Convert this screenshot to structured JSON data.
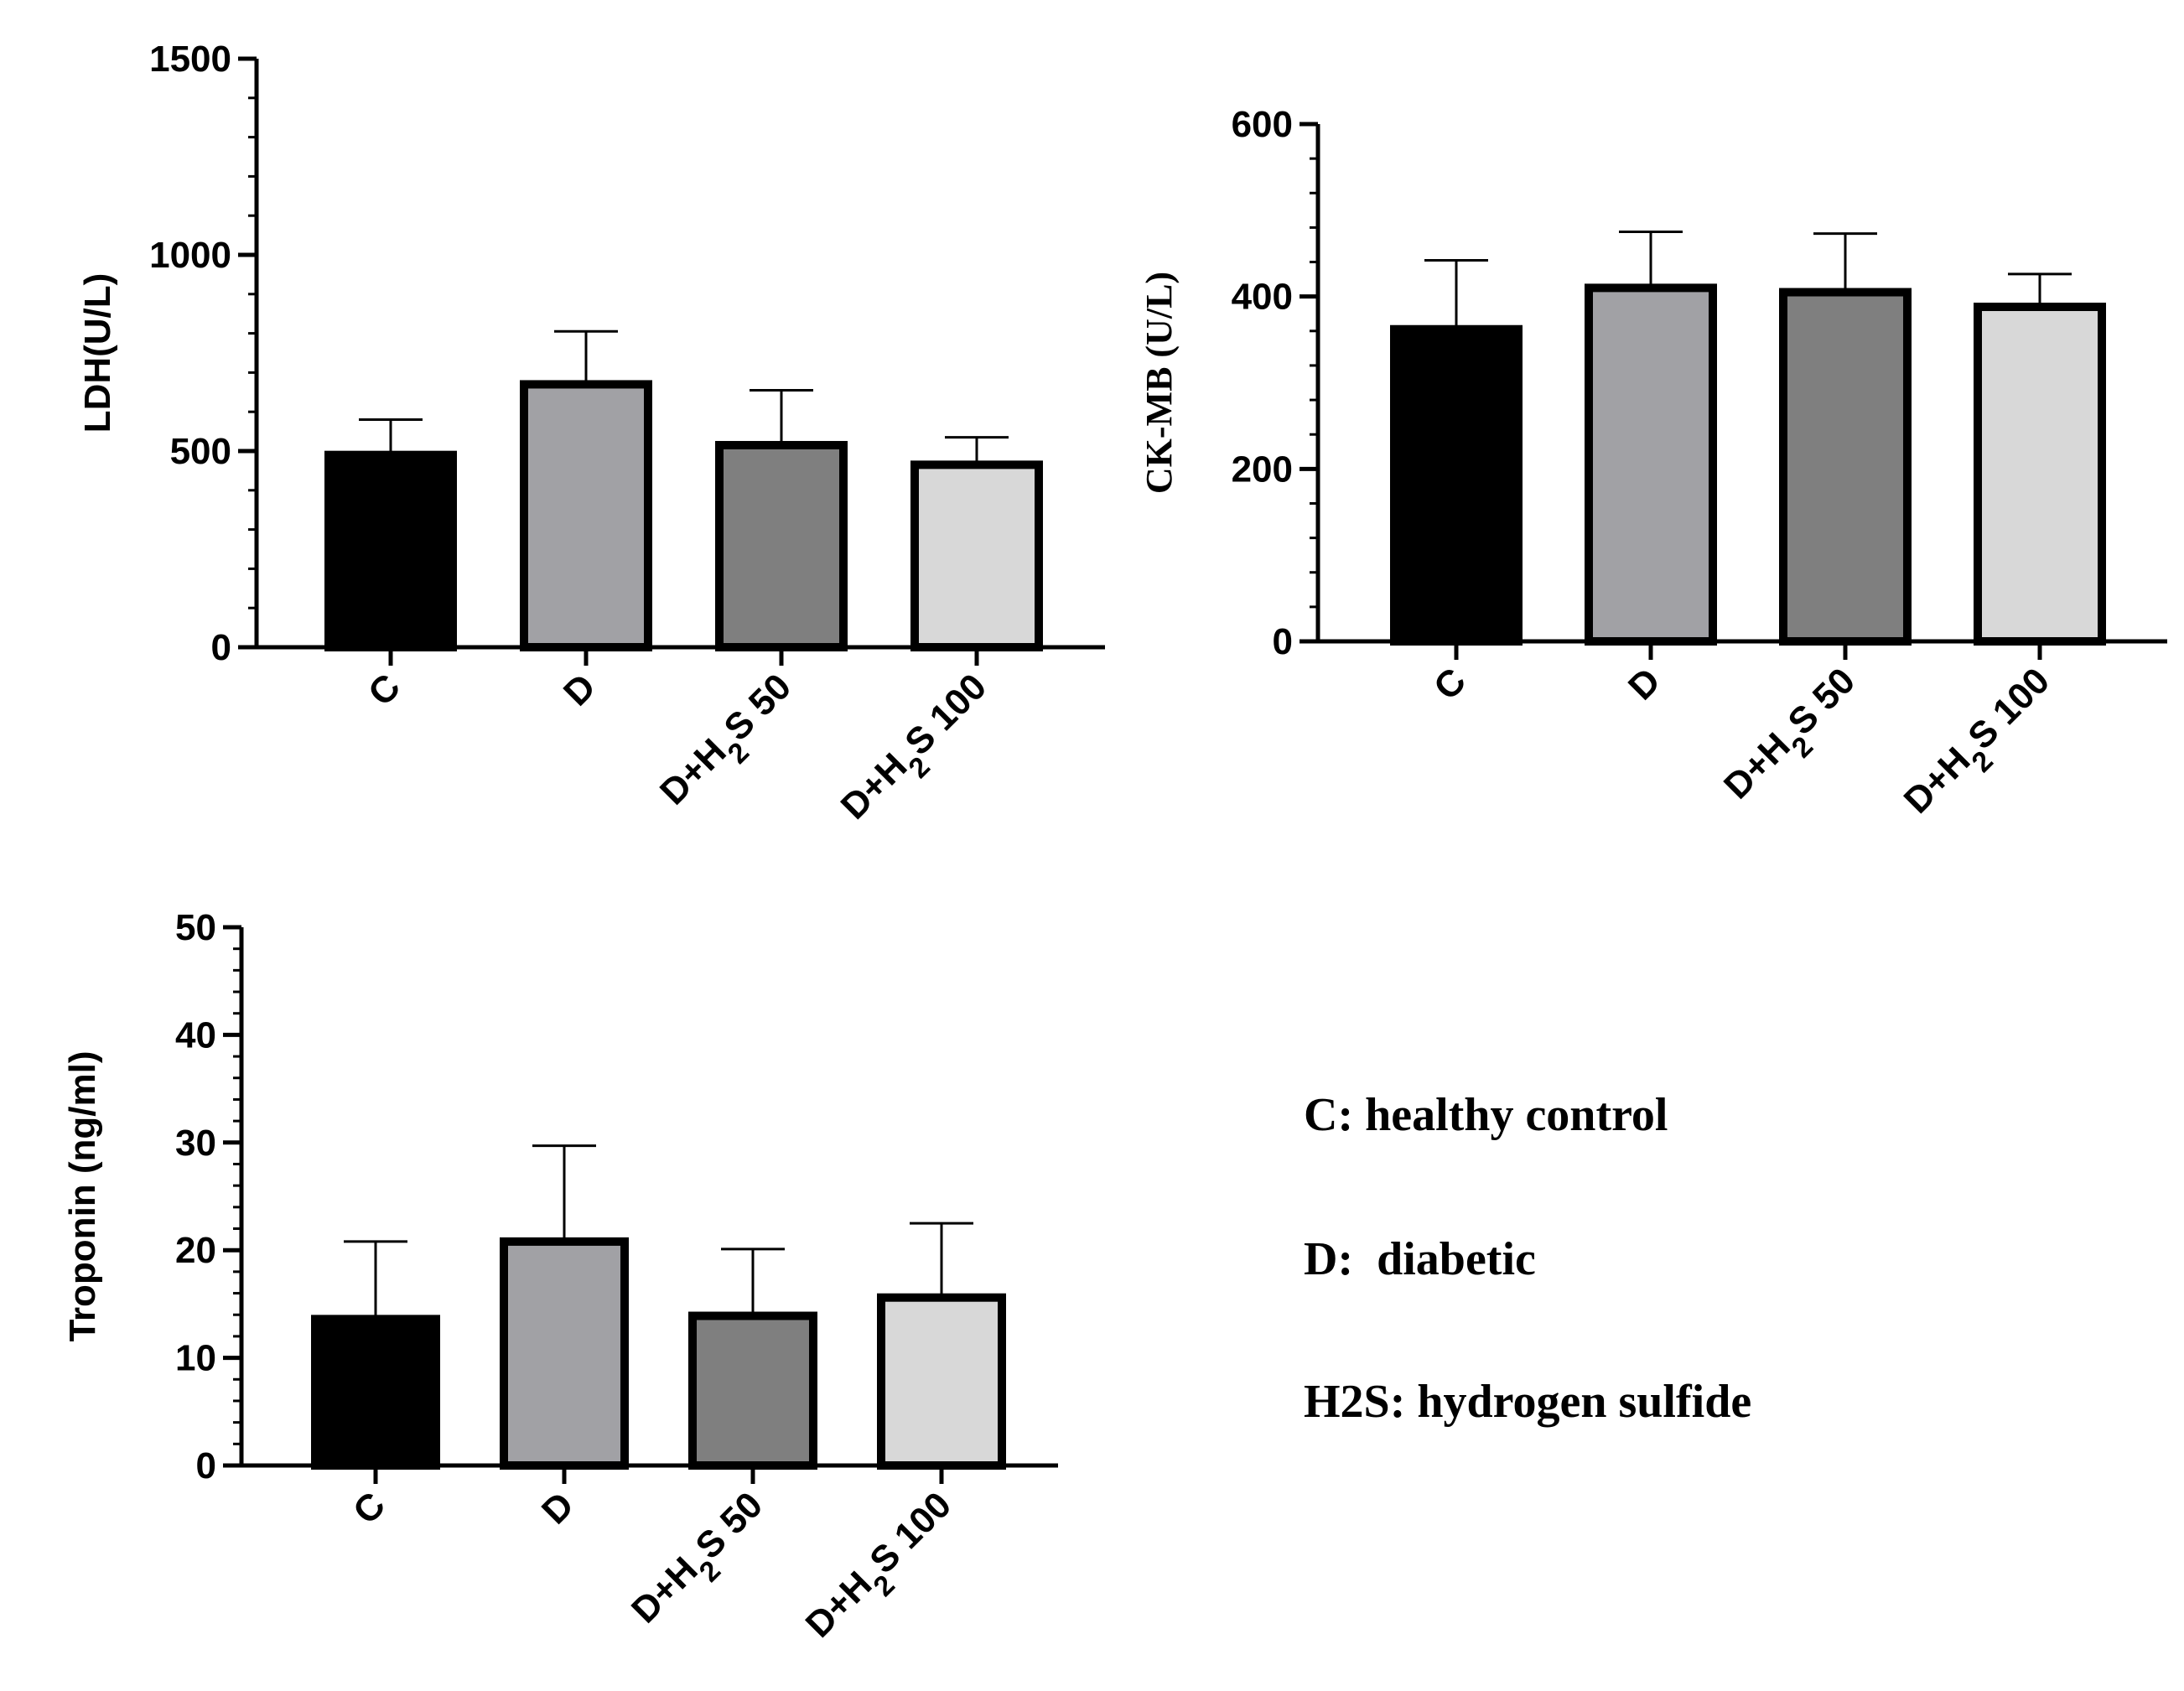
{
  "chart_data": [
    {
      "type": "bar",
      "categories": [
        "C",
        "D",
        "D+H2S 50",
        "D+H2S 100"
      ],
      "values": [
        490,
        670,
        515,
        465
      ],
      "errors": [
        90,
        135,
        140,
        70
      ],
      "ylabel": "LDH(U/L)",
      "ylim": [
        0,
        1500
      ],
      "yticks": [
        0,
        500,
        1000,
        1500
      ],
      "minor_step": 100,
      "colors": [
        "#000000",
        "#a1a1a5",
        "#7f7f7f",
        "#d8d8d8"
      ],
      "grid": false
    },
    {
      "type": "bar",
      "categories": [
        "C",
        "D",
        "D+H2S 50",
        "D+H2S 100"
      ],
      "values": [
        362,
        410,
        405,
        388
      ],
      "errors": [
        80,
        65,
        68,
        38
      ],
      "ylabel": "CK-MB (U/L)",
      "ylim": [
        0,
        600
      ],
      "yticks": [
        0,
        200,
        400,
        600
      ],
      "minor_step": 40,
      "colors": [
        "#000000",
        "#a1a1a5",
        "#7f7f7f",
        "#d8d8d8"
      ],
      "grid": false
    },
    {
      "type": "bar",
      "categories": [
        "C",
        "D",
        "D+H2S 50",
        "D+H2S 100"
      ],
      "values": [
        13.6,
        20.8,
        13.9,
        15.6
      ],
      "errors": [
        7.2,
        8.9,
        6.2,
        6.9
      ],
      "ylabel": "Troponin (ng/ml)",
      "ylim": [
        0,
        50
      ],
      "yticks": [
        0,
        10,
        20,
        30,
        40,
        50
      ],
      "minor_step": 2,
      "colors": [
        "#000000",
        "#a1a1a5",
        "#7f7f7f",
        "#d8d8d8"
      ],
      "grid": false
    }
  ],
  "legend": {
    "items": [
      "C: healthy control",
      "D:  diabetic",
      "H2S: hydrogen sulfide"
    ]
  }
}
